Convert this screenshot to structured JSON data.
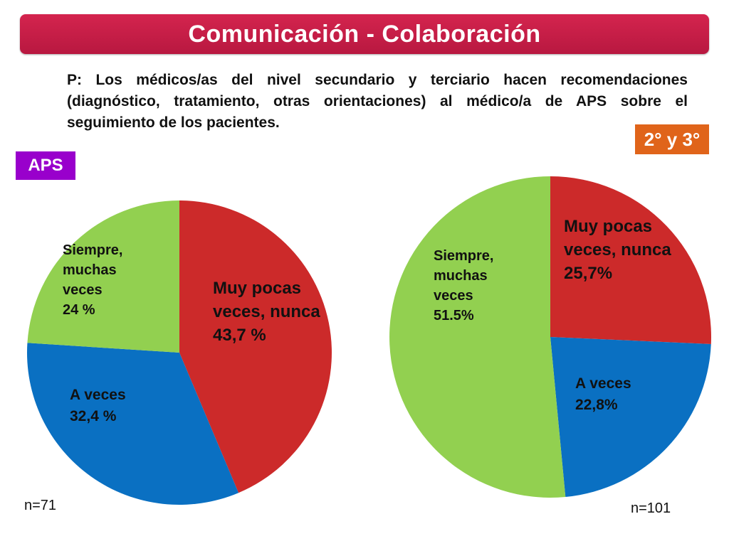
{
  "header": {
    "title": "Comunicación - Colaboración"
  },
  "question": {
    "text": "P: Los médicos/as del nivel secundario y terciario hacen recomendaciones (diagnóstico, tratamiento, otras orientaciones) al médico/a de APS sobre el seguimiento de los pacientes."
  },
  "tags": {
    "aps": "APS",
    "secondary_tertiary": "2° y 3°"
  },
  "samples": {
    "aps": "n=71",
    "secondary_tertiary": "n=101"
  },
  "colors": {
    "red": "#cc2a2a",
    "blue": "#0a70c2",
    "green": "#92d050",
    "title_bar": "#c81e48",
    "aps_tag": "#9900cc",
    "secondary_tag": "#e0641a"
  },
  "chart_data": [
    {
      "type": "pie",
      "title": "",
      "sample": "n=71",
      "slices": [
        {
          "lines": [
            "Muy pocas",
            "veces, nunca",
            "43,7 %"
          ],
          "value": 43.7,
          "color": "#cc2a2a"
        },
        {
          "lines": [
            "A veces",
            "32,4 %"
          ],
          "value": 32.4,
          "color": "#0a70c2"
        },
        {
          "lines": [
            "Siempre,",
            "muchas",
            "veces",
            "24 %"
          ],
          "value": 24,
          "color": "#92d050"
        }
      ]
    },
    {
      "type": "pie",
      "title": "",
      "sample": "n=101",
      "slices": [
        {
          "lines": [
            "Muy pocas",
            "veces, nunca",
            "25,7%"
          ],
          "value": 25.7,
          "color": "#cc2a2a"
        },
        {
          "lines": [
            "A veces",
            "22,8%"
          ],
          "value": 22.8,
          "color": "#0a70c2"
        },
        {
          "lines": [
            "Siempre,",
            "muchas",
            "veces",
            "51.5%"
          ],
          "value": 51.5,
          "color": "#92d050"
        }
      ]
    }
  ]
}
